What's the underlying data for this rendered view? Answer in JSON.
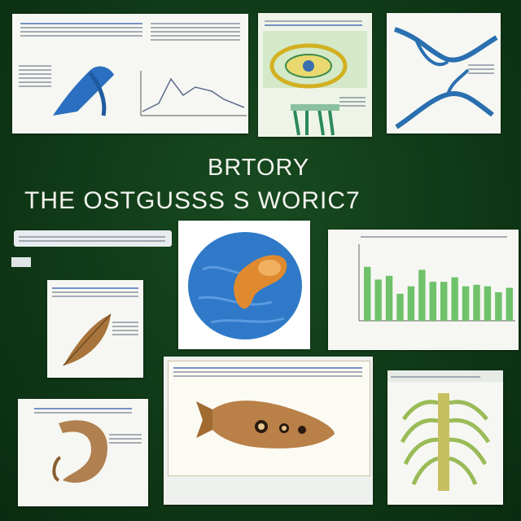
{
  "headline": {
    "line1": "BRTORY",
    "line2": "THE OSTGUSSS S WORIC7"
  },
  "colors": {
    "board": "#0f3a16",
    "card": "#f6f7f2",
    "chart_bar": "#6fc26a",
    "specimen_blue": "#2f79c8",
    "specimen_brown": "#a8743c"
  },
  "chart_data": {
    "type": "bar",
    "values": [
      0.72,
      0.55,
      0.6,
      0.36,
      0.46,
      0.68,
      0.52,
      0.52,
      0.58,
      0.46,
      0.48,
      0.46,
      0.38,
      0.44
    ],
    "ylim": [
      0,
      1
    ]
  },
  "cards": [
    {
      "name": "card-blue-specimen-with-graph",
      "icon": "blue-specimen-icon"
    },
    {
      "name": "card-yellow-cell-diagram",
      "icon": "cell-diagram-icon"
    },
    {
      "name": "card-blue-vein-diagram",
      "icon": "vein-icon"
    },
    {
      "name": "card-blue-globe",
      "icon": "globe-icon"
    },
    {
      "name": "card-bar-chart",
      "icon": "bar-chart-icon"
    },
    {
      "name": "card-brown-leaf",
      "icon": "leaf-icon"
    },
    {
      "name": "card-fish-specimen",
      "icon": "fish-icon"
    },
    {
      "name": "card-brown-bone",
      "icon": "bone-icon"
    },
    {
      "name": "card-green-spine",
      "icon": "spine-icon"
    }
  ]
}
